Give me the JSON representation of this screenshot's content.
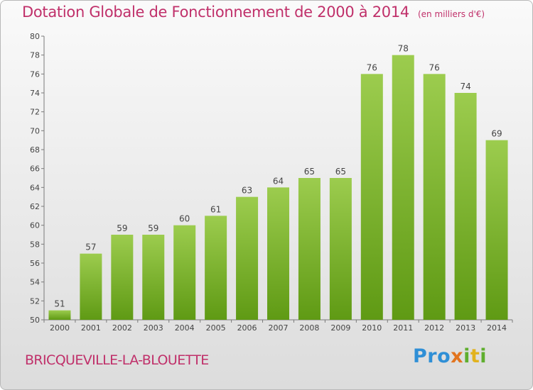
{
  "title": "Dotation Globale de Fonctionnement de 2000 à 2014",
  "unit_note": "(en milliers d'€)",
  "commune": "BRICQUEVILLE-LA-BLOUETTE",
  "logo": {
    "p1": "Pro",
    "p2": "x",
    "p3": "i",
    "p4": "t",
    "p5": "i"
  },
  "colors": {
    "bar_top": "#9ccc4e",
    "bar_bottom": "#5f9a14",
    "title": "#c0306a"
  },
  "chart_data": {
    "type": "bar",
    "categories": [
      "2000",
      "2001",
      "2002",
      "2003",
      "2004",
      "2005",
      "2006",
      "2007",
      "2008",
      "2009",
      "2010",
      "2011",
      "2012",
      "2013",
      "2014"
    ],
    "values": [
      51,
      57,
      59,
      59,
      60,
      61,
      63,
      64,
      65,
      65,
      76,
      78,
      76,
      74,
      69
    ],
    "ylim": [
      50,
      80
    ],
    "yticks": [
      50,
      52,
      54,
      56,
      58,
      60,
      62,
      64,
      66,
      68,
      70,
      72,
      74,
      76,
      78,
      80
    ],
    "grid": false,
    "data_labels": true
  }
}
